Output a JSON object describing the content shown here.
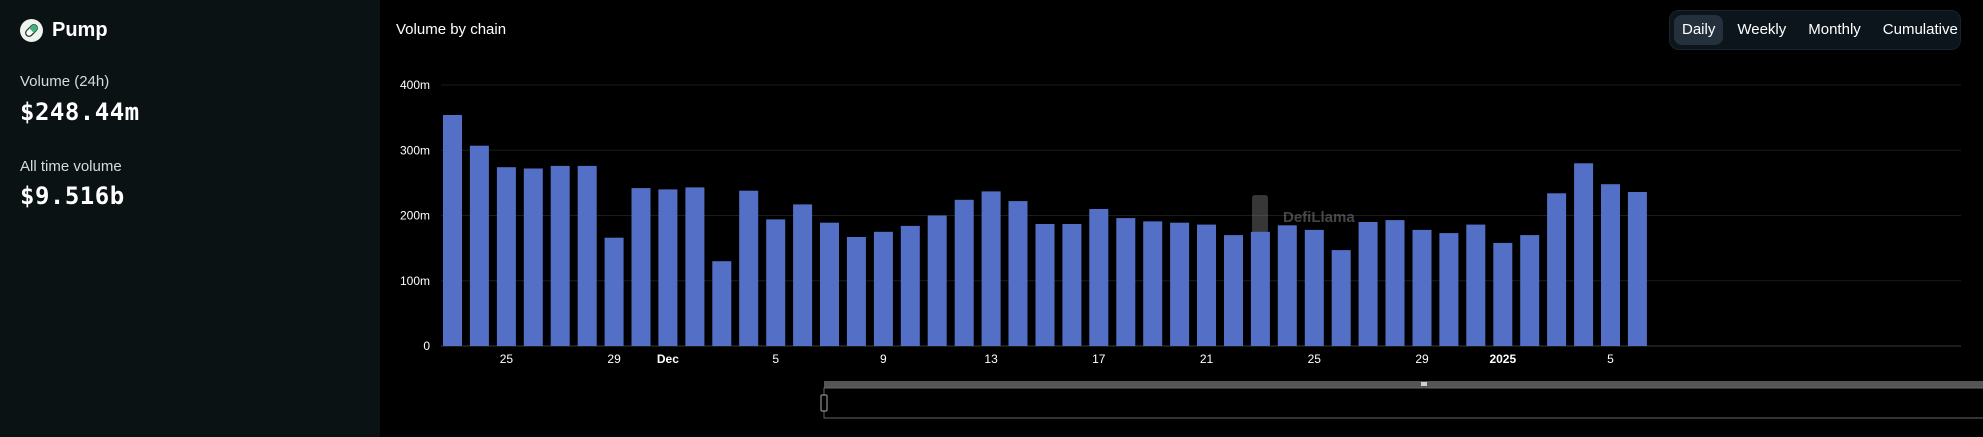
{
  "brand": {
    "name": "Pump",
    "icon": "pill-icon"
  },
  "stats": [
    {
      "label": "Volume (24h)",
      "value": "$248.44m"
    },
    {
      "label": "All time volume",
      "value": "$9.516b"
    }
  ],
  "chart_title": "Volume by chain",
  "tabs": [
    {
      "label": "Daily",
      "active": true
    },
    {
      "label": "Weekly",
      "active": false
    },
    {
      "label": "Monthly",
      "active": false
    },
    {
      "label": "Cumulative",
      "active": false
    }
  ],
  "watermark": "DefiLlama",
  "colors": {
    "bar": "#5470c6",
    "grid": "#1c1c1c",
    "panel": "#0b1214"
  },
  "chart_data": {
    "type": "bar",
    "series": [
      {
        "values": [
          354,
          307,
          274,
          272,
          276,
          276,
          166,
          242,
          240,
          243,
          130,
          238,
          194,
          217,
          189,
          167,
          175,
          184,
          200,
          224,
          237,
          222,
          187,
          187,
          210,
          196,
          191,
          189,
          186,
          170,
          175,
          185,
          178,
          147,
          190,
          193,
          178,
          173,
          186,
          158,
          170,
          234,
          280,
          248,
          236
        ]
      }
    ],
    "x_tick_labels": [
      "25",
      "29",
      "Dec",
      "5",
      "9",
      "13",
      "17",
      "21",
      "25",
      "29",
      "2025",
      "5"
    ],
    "x_tick_bold": [
      "Dec",
      "2025"
    ],
    "x_tick_bar_index": [
      2,
      6,
      8,
      12,
      16,
      20,
      24,
      28,
      32,
      36,
      39,
      43
    ],
    "y_ticks": [
      0,
      100,
      200,
      300,
      400
    ],
    "y_tick_labels": [
      "0",
      "100m",
      "200m",
      "300m",
      "400m"
    ],
    "ylim": [
      0,
      400
    ],
    "grid": true
  }
}
